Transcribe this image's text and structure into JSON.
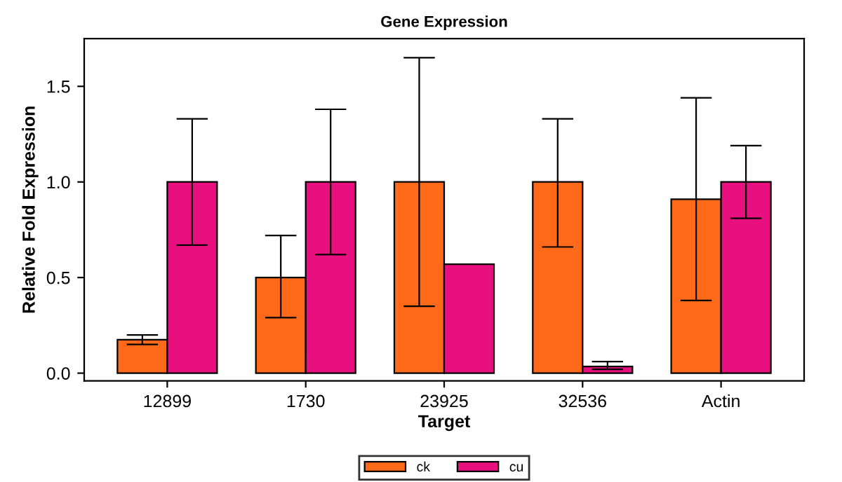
{
  "chart_data": {
    "type": "bar",
    "title": "Gene Expression",
    "xlabel": "Target",
    "ylabel": "Relative Fold Expression",
    "categories": [
      "12899",
      "1730",
      "23925",
      "32536",
      "Actin"
    ],
    "series": [
      {
        "name": "ck",
        "color": "#ff6a1a",
        "values": [
          0.175,
          0.5,
          1.0,
          1.0,
          0.91
        ],
        "errors": [
          [
            0.15,
            0.2
          ],
          [
            0.29,
            0.72
          ],
          [
            0.35,
            1.65
          ],
          [
            0.66,
            1.33
          ],
          [
            0.38,
            1.44
          ]
        ]
      },
      {
        "name": "cu",
        "color": "#e8107e",
        "values": [
          1.0,
          1.0,
          0.57,
          0.035,
          1.0
        ],
        "errors": [
          [
            0.67,
            1.33
          ],
          [
            0.62,
            1.38
          ],
          null,
          [
            0.02,
            0.06
          ],
          [
            0.81,
            1.19
          ]
        ]
      }
    ],
    "ylim": [
      -0.04,
      1.75
    ],
    "yticks": [
      {
        "value": 0,
        "label": "0.0"
      },
      {
        "value": 0.5,
        "label": "0.5"
      },
      {
        "value": 1,
        "label": "1.0"
      },
      {
        "value": 1.5,
        "label": "1.5"
      }
    ],
    "grid": false,
    "legend": "bottom"
  }
}
